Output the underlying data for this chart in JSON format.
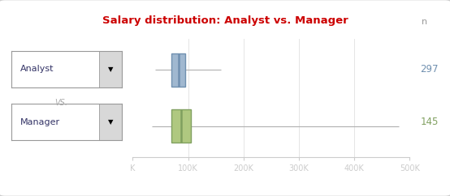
{
  "title": "Salary distribution: Analyst vs. Manager",
  "title_color": "#cc0000",
  "background_color": "#f0f0f0",
  "panel_bg": "#ffffff",
  "x_ticks": [
    0,
    100000,
    200000,
    300000,
    400000,
    500000
  ],
  "x_tick_labels": [
    "K",
    "100K",
    "200K",
    "300K",
    "400K",
    "500K"
  ],
  "x_min": 0,
  "x_max": 500000,
  "analyst": {
    "label": "Analyst",
    "n": 297,
    "n_color": "#7090b0",
    "n_bg": "#b8cde0",
    "box_color": "#7090b0",
    "box_fill": "#a0b8d0",
    "whisker_color": "#b0b0b0",
    "q1": 70000,
    "median": 83000,
    "q3": 95000,
    "whisker_min": 40000,
    "whisker_max": 160000,
    "y": 1.0
  },
  "manager": {
    "label": "Manager",
    "n": 145,
    "n_color": "#80a060",
    "n_bg": "#c0d090",
    "box_color": "#80a060",
    "box_fill": "#afc880",
    "whisker_color": "#b0b0b0",
    "q1": 70000,
    "median": 87000,
    "q3": 105000,
    "whisker_min": 35000,
    "whisker_max": 480000,
    "y": 0.0
  },
  "dropdown_analyst": "Analyst",
  "dropdown_manager": "Manager",
  "vs_text": "VS.",
  "n_label": "n",
  "n_label_color": "#999999",
  "border_color": "#cccccc"
}
